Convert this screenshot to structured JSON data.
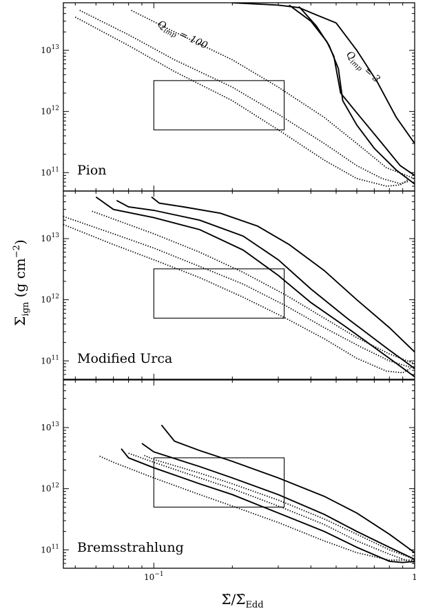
{
  "chart_data": {
    "type": "line",
    "x_scale": "log",
    "y_scale": "log",
    "xlim": [
      0.045,
      1
    ],
    "ylim": [
      50000000000,
      60000000000000
    ],
    "x_ticks": [
      {
        "value": 0.1,
        "label": "10",
        "exp": "−1"
      },
      {
        "value": 1,
        "label": "1",
        "exp": ""
      }
    ],
    "y_ticks": [
      {
        "value": 100000000000,
        "label": "10",
        "exp": "11"
      },
      {
        "value": 1000000000000,
        "label": "10",
        "exp": "12"
      },
      {
        "value": 10000000000000,
        "label": "10",
        "exp": "13"
      }
    ],
    "xlabel": {
      "main": "Σ̇/Σ̇",
      "sub": "Edd"
    },
    "ylabel": {
      "main": "Σ",
      "sub": "ign",
      "unit_open": " (g cm",
      "unit_exp": "−2",
      "unit_close": ")"
    },
    "box": {
      "x": [
        0.1,
        0.316
      ],
      "y": [
        500000000000,
        3200000000000
      ]
    },
    "panels": [
      {
        "label": "Pion",
        "annotations": [
          {
            "prefix": "Q",
            "sub": "imp",
            "suffix": " = 100"
          },
          {
            "prefix": "Q",
            "sub": "imp",
            "suffix": " = 3"
          }
        ],
        "series": [
          {
            "style": "solid",
            "points": [
              [
                0.2,
                60000000000000
              ],
              [
                0.3,
                55000000000000
              ],
              [
                0.36,
                50000000000000
              ],
              [
                0.42,
                38000000000000
              ],
              [
                0.5,
                28000000000000
              ],
              [
                0.6,
                10000000000000
              ],
              [
                0.72,
                3000000000000
              ],
              [
                0.85,
                800000000000
              ],
              [
                1,
                300000000000
              ]
            ]
          },
          {
            "style": "solid",
            "points": [
              [
                0.33,
                55000000000000
              ],
              [
                0.4,
                30000000000000
              ],
              [
                0.46,
                14000000000000
              ],
              [
                0.49,
                8000000000000
              ],
              [
                0.52,
                2000000000000
              ],
              [
                0.62,
                800000000000
              ],
              [
                0.75,
                300000000000
              ],
              [
                0.88,
                130000000000
              ],
              [
                1,
                90000000000
              ]
            ]
          },
          {
            "style": "solid",
            "points": [
              [
                0.36,
                52000000000000
              ],
              [
                0.42,
                25000000000000
              ],
              [
                0.47,
                12000000000000
              ],
              [
                0.51,
                5000000000000
              ],
              [
                0.53,
                1500000000000
              ],
              [
                0.6,
                600000000000
              ],
              [
                0.7,
                250000000000
              ],
              [
                0.85,
                110000000000
              ],
              [
                1,
                65000000000
              ]
            ]
          },
          {
            "style": "dotted",
            "points": [
              [
                0.082,
                45000000000000
              ],
              [
                0.12,
                20000000000000
              ],
              [
                0.2,
                7000000000000
              ],
              [
                0.3,
                2500000000000
              ],
              [
                0.45,
                800000000000
              ],
              [
                0.6,
                300000000000
              ],
              [
                0.78,
                120000000000
              ],
              [
                0.9,
                95000000000
              ],
              [
                1,
                80000000000
              ]
            ]
          },
          {
            "style": "dotted",
            "points": [
              [
                0.052,
                45000000000000
              ],
              [
                0.08,
                18000000000000
              ],
              [
                0.12,
                7000000000000
              ],
              [
                0.2,
                2500000000000
              ],
              [
                0.3,
                900000000000
              ],
              [
                0.45,
                300000000000
              ],
              [
                0.6,
                130000000000
              ],
              [
                0.75,
                80000000000
              ],
              [
                0.88,
                66000000000
              ],
              [
                0.95,
                72000000000
              ]
            ]
          },
          {
            "style": "dotted",
            "points": [
              [
                0.05,
                35000000000000
              ],
              [
                0.08,
                12000000000000
              ],
              [
                0.12,
                4500000000000
              ],
              [
                0.2,
                1500000000000
              ],
              [
                0.3,
                500000000000
              ],
              [
                0.45,
                160000000000
              ],
              [
                0.6,
                80000000000
              ],
              [
                0.78,
                60000000000
              ],
              [
                0.88,
                63000000000
              ],
              [
                0.95,
                78000000000
              ]
            ]
          }
        ]
      },
      {
        "label": "Modified Urca",
        "annotations": [],
        "series": [
          {
            "style": "solid",
            "points": [
              [
                0.06,
                48000000000000
              ],
              [
                0.07,
                30000000000000
              ],
              [
                0.1,
                22000000000000
              ],
              [
                0.15,
                14000000000000
              ],
              [
                0.22,
                6500000000000
              ],
              [
                0.3,
                2500000000000
              ],
              [
                0.4,
                900000000000
              ],
              [
                0.55,
                350000000000
              ],
              [
                0.8,
                110000000000
              ],
              [
                1,
                55000000000
              ]
            ]
          },
          {
            "style": "solid",
            "points": [
              [
                0.072,
                42000000000000
              ],
              [
                0.08,
                33000000000000
              ],
              [
                0.1,
                29000000000000
              ],
              [
                0.15,
                20000000000000
              ],
              [
                0.22,
                11000000000000
              ],
              [
                0.3,
                4500000000000
              ],
              [
                0.4,
                1500000000000
              ],
              [
                0.55,
                500000000000
              ],
              [
                0.8,
                150000000000
              ],
              [
                1,
                75000000000
              ]
            ]
          },
          {
            "style": "solid",
            "points": [
              [
                0.098,
                48000000000000
              ],
              [
                0.105,
                38000000000000
              ],
              [
                0.13,
                33000000000000
              ],
              [
                0.18,
                26000000000000
              ],
              [
                0.25,
                16000000000000
              ],
              [
                0.33,
                8000000000000
              ],
              [
                0.45,
                3000000000000
              ],
              [
                0.6,
                1000000000000
              ],
              [
                0.8,
                350000000000
              ],
              [
                1,
                140000000000
              ]
            ]
          },
          {
            "style": "dotted",
            "points": [
              [
                0.045,
                23000000000000
              ],
              [
                0.07,
                12000000000000
              ],
              [
                0.1,
                7000000000000
              ],
              [
                0.15,
                3500000000000
              ],
              [
                0.22,
                1800000000000
              ],
              [
                0.32,
                800000000000
              ],
              [
                0.45,
                350000000000
              ],
              [
                0.62,
                170000000000
              ],
              [
                0.8,
                100000000000
              ],
              [
                1,
                75000000000
              ]
            ]
          },
          {
            "style": "dotted",
            "points": [
              [
                0.045,
                17000000000000
              ],
              [
                0.07,
                8000000000000
              ],
              [
                0.1,
                4500000000000
              ],
              [
                0.15,
                2300000000000
              ],
              [
                0.22,
                1100000000000
              ],
              [
                0.32,
                500000000000
              ],
              [
                0.45,
                230000000000
              ],
              [
                0.6,
                110000000000
              ],
              [
                0.78,
                68000000000
              ],
              [
                0.9,
                64000000000
              ],
              [
                0.96,
                75000000000
              ]
            ]
          },
          {
            "style": "dotted",
            "points": [
              [
                0.058,
                28000000000000
              ],
              [
                0.08,
                17000000000000
              ],
              [
                0.1,
                12000000000000
              ],
              [
                0.15,
                6000000000000
              ],
              [
                0.22,
                2800000000000
              ],
              [
                0.32,
                1200000000000
              ],
              [
                0.45,
                500000000000
              ],
              [
                0.6,
                240000000000
              ],
              [
                0.8,
                130000000000
              ],
              [
                1,
                90000000000
              ]
            ]
          }
        ]
      },
      {
        "label": "Bremsstrahlung",
        "annotations": [],
        "series": [
          {
            "style": "solid",
            "points": [
              [
                0.107,
                11000000000000
              ],
              [
                0.12,
                6000000000000
              ],
              [
                0.15,
                4200000000000
              ],
              [
                0.2,
                2800000000000
              ],
              [
                0.3,
                1500000000000
              ],
              [
                0.45,
                750000000000
              ],
              [
                0.6,
                400000000000
              ],
              [
                0.8,
                180000000000
              ],
              [
                1,
                90000000000
              ]
            ]
          },
          {
            "style": "solid",
            "points": [
              [
                0.09,
                5500000000000
              ],
              [
                0.1,
                4000000000000
              ],
              [
                0.15,
                2300000000000
              ],
              [
                0.2,
                1500000000000
              ],
              [
                0.3,
                800000000000
              ],
              [
                0.45,
                380000000000
              ],
              [
                0.6,
                200000000000
              ],
              [
                0.8,
                110000000000
              ],
              [
                1,
                70000000000
              ]
            ]
          },
          {
            "style": "solid",
            "points": [
              [
                0.075,
                4500000000000
              ],
              [
                0.08,
                3200000000000
              ],
              [
                0.1,
                2200000000000
              ],
              [
                0.15,
                1200000000000
              ],
              [
                0.2,
                800000000000
              ],
              [
                0.3,
                400000000000
              ],
              [
                0.45,
                200000000000
              ],
              [
                0.6,
                110000000000
              ],
              [
                0.8,
                65000000000
              ],
              [
                0.9,
                62000000000
              ],
              [
                1,
                65000000000
              ]
            ]
          },
          {
            "style": "dotted",
            "points": [
              [
                0.092,
                3500000000000
              ],
              [
                0.1,
                3000000000000
              ],
              [
                0.15,
                1800000000000
              ],
              [
                0.2,
                1200000000000
              ],
              [
                0.3,
                650000000000
              ],
              [
                0.45,
                320000000000
              ],
              [
                0.6,
                180000000000
              ],
              [
                0.8,
                100000000000
              ],
              [
                1,
                70000000000
              ]
            ]
          },
          {
            "style": "dotted",
            "points": [
              [
                0.08,
                3800000000000
              ],
              [
                0.1,
                2700000000000
              ],
              [
                0.15,
                1500000000000
              ],
              [
                0.2,
                1000000000000
              ],
              [
                0.3,
                520000000000
              ],
              [
                0.45,
                260000000000
              ],
              [
                0.6,
                140000000000
              ],
              [
                0.8,
                85000000000
              ],
              [
                1,
                60000000000
              ]
            ]
          },
          {
            "style": "dotted",
            "points": [
              [
                0.062,
                3400000000000
              ],
              [
                0.07,
                2700000000000
              ],
              [
                0.1,
                1500000000000
              ],
              [
                0.15,
                800000000000
              ],
              [
                0.2,
                520000000000
              ],
              [
                0.3,
                280000000000
              ],
              [
                0.45,
                140000000000
              ],
              [
                0.6,
                90000000000
              ],
              [
                0.8,
                68000000000
              ],
              [
                1,
                68000000000
              ]
            ]
          }
        ]
      }
    ]
  }
}
